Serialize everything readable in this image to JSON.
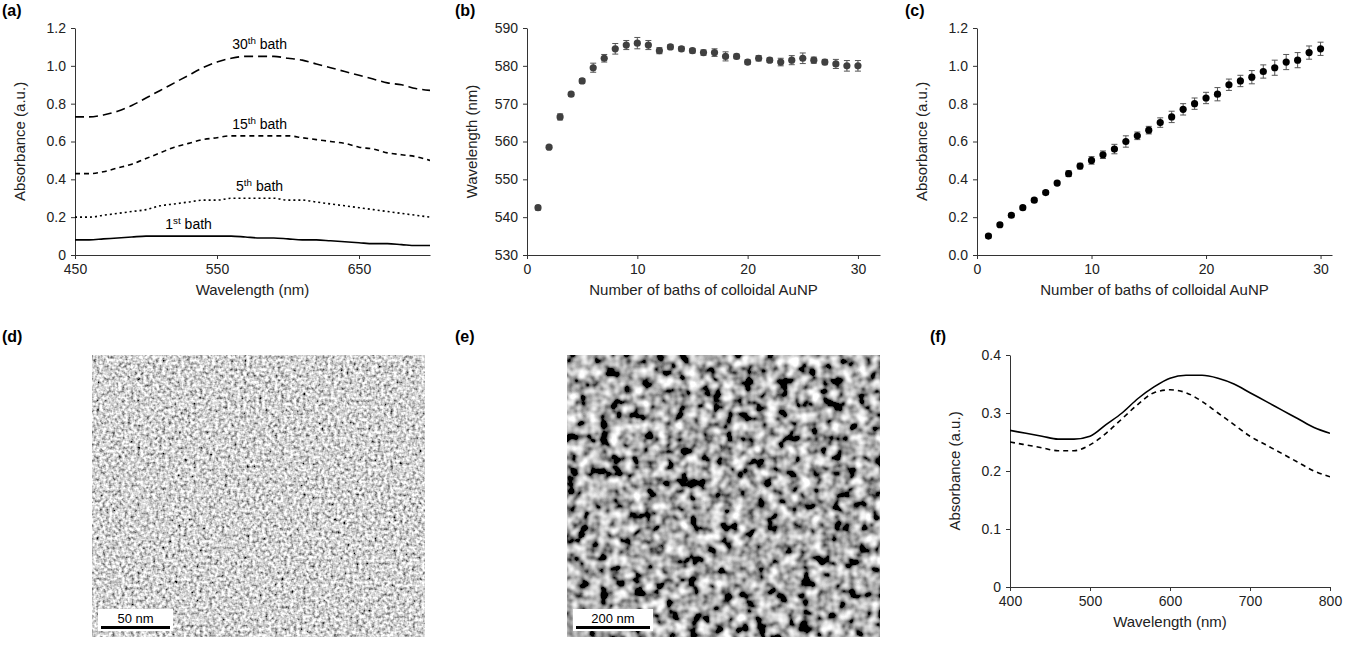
{
  "chart_data": [
    {
      "type": "line",
      "panel_label": "(a)",
      "x_label": "Wavelength (nm)",
      "y_label": "Absorbance (a.u.)",
      "x": [
        450,
        460,
        470,
        480,
        490,
        500,
        510,
        520,
        530,
        540,
        550,
        560,
        570,
        580,
        590,
        600,
        610,
        620,
        630,
        640,
        650,
        660,
        670,
        680,
        690,
        700
      ],
      "xlim": [
        450,
        700
      ],
      "xticks": [
        450,
        550,
        650
      ],
      "ylim": [
        0,
        1.2
      ],
      "yticks": [
        0,
        0.2,
        0.4,
        0.6,
        0.8,
        {
          "value": 1,
          "label": "1.0"
        },
        1.2
      ],
      "series": [
        {
          "name": "1st bath",
          "color": "#000000",
          "line_style": "solid",
          "values": [
            0.08,
            0.08,
            0.085,
            0.09,
            0.095,
            0.1,
            0.1,
            0.1,
            0.1,
            0.1,
            0.1,
            0.1,
            0.095,
            0.09,
            0.09,
            0.085,
            0.08,
            0.08,
            0.075,
            0.07,
            0.065,
            0.06,
            0.06,
            0.055,
            0.05,
            0.05
          ]
        },
        {
          "name": "5th bath",
          "color": "#000000",
          "line_style": "dotted",
          "values": [
            0.2,
            0.2,
            0.21,
            0.22,
            0.23,
            0.24,
            0.26,
            0.27,
            0.28,
            0.29,
            0.29,
            0.3,
            0.3,
            0.3,
            0.3,
            0.29,
            0.29,
            0.28,
            0.27,
            0.26,
            0.25,
            0.24,
            0.23,
            0.22,
            0.21,
            0.2
          ]
        },
        {
          "name": "15th bath",
          "color": "#000000",
          "line_style": "dashed",
          "values": [
            0.43,
            0.43,
            0.44,
            0.46,
            0.48,
            0.51,
            0.54,
            0.57,
            0.59,
            0.61,
            0.62,
            0.63,
            0.63,
            0.63,
            0.63,
            0.63,
            0.62,
            0.61,
            0.6,
            0.59,
            0.57,
            0.56,
            0.54,
            0.53,
            0.52,
            0.5
          ]
        },
        {
          "name": "30th bath",
          "color": "#000000",
          "line_style": "longdash",
          "values": [
            0.73,
            0.73,
            0.74,
            0.76,
            0.79,
            0.83,
            0.87,
            0.91,
            0.95,
            0.99,
            1.02,
            1.04,
            1.05,
            1.05,
            1.05,
            1.04,
            1.03,
            1.01,
            0.99,
            0.97,
            0.95,
            0.93,
            0.91,
            0.9,
            0.88,
            0.87
          ]
        }
      ]
    },
    {
      "type": "scatter",
      "panel_label": "(b)",
      "x_label": "Number of baths of colloidal AuNP",
      "y_label": "Wavelength (nm)",
      "color": "#404040",
      "marker": "circle",
      "x": [
        1,
        2,
        3,
        4,
        5,
        6,
        7,
        8,
        9,
        10,
        11,
        12,
        13,
        14,
        15,
        16,
        17,
        18,
        19,
        20,
        21,
        22,
        23,
        24,
        25,
        26,
        27,
        28,
        29,
        30
      ],
      "values": [
        542.5,
        558.5,
        566.5,
        572.5,
        576,
        579.5,
        582,
        584.5,
        585.5,
        586,
        585.5,
        584,
        585,
        584.5,
        584,
        583.5,
        583.5,
        582.5,
        582.5,
        581,
        582,
        581.5,
        581,
        581.5,
        582,
        581.5,
        581,
        580.5,
        580,
        580
      ],
      "errors": [
        0.6,
        0.4,
        0.8,
        0.5,
        0.6,
        1.2,
        1,
        1.4,
        1.2,
        1.5,
        1.2,
        0.8,
        0.6,
        0.6,
        0.6,
        0.7,
        1,
        1.2,
        0.6,
        0.6,
        0.7,
        0.6,
        1,
        1.2,
        1.4,
        0.8,
        0.7,
        1.2,
        1.4,
        1.4
      ],
      "xlim": [
        0,
        32
      ],
      "xticks": [
        0,
        10,
        20,
        30
      ],
      "ylim": [
        530,
        590
      ],
      "yticks": [
        530,
        540,
        550,
        560,
        570,
        580,
        590
      ]
    },
    {
      "type": "scatter",
      "panel_label": "(c)",
      "x_label": "Number of baths of colloidal AuNP",
      "y_label": "Absorbance (a.u.)",
      "color": "#000000",
      "marker": "circle",
      "x": [
        1,
        2,
        3,
        4,
        5,
        6,
        7,
        8,
        9,
        10,
        11,
        12,
        13,
        14,
        15,
        16,
        17,
        18,
        19,
        20,
        21,
        22,
        23,
        24,
        25,
        26,
        27,
        28,
        29,
        30
      ],
      "values": [
        0.1,
        0.16,
        0.21,
        0.25,
        0.29,
        0.33,
        0.38,
        0.43,
        0.47,
        0.5,
        0.53,
        0.56,
        0.6,
        0.63,
        0.66,
        0.7,
        0.73,
        0.77,
        0.8,
        0.83,
        0.85,
        0.9,
        0.92,
        0.94,
        0.97,
        0.99,
        1.02,
        1.03,
        1.07,
        1.09
      ],
      "errors": [
        0.01,
        0.01,
        0.01,
        0.01,
        0.01,
        0.01,
        0.01,
        0.015,
        0.015,
        0.02,
        0.02,
        0.025,
        0.03,
        0.02,
        0.02,
        0.025,
        0.03,
        0.03,
        0.03,
        0.03,
        0.035,
        0.03,
        0.03,
        0.035,
        0.035,
        0.04,
        0.04,
        0.04,
        0.035,
        0.035
      ],
      "xlim": [
        0,
        31
      ],
      "xticks": [
        0,
        10,
        20,
        30
      ],
      "ylim": [
        0,
        1.2
      ],
      "yticks": [
        {
          "value": 0,
          "label": "0.0"
        },
        0.2,
        0.4,
        0.6,
        0.8,
        {
          "value": 1,
          "label": "1.0"
        },
        1.2
      ]
    },
    {
      "type": "image",
      "panel_label": "(d)",
      "scale_bar": "50 nm"
    },
    {
      "type": "image",
      "panel_label": "(e)",
      "scale_bar": "200 nm"
    },
    {
      "type": "line",
      "panel_label": "(f)",
      "x_label": "Wavelength (nm)",
      "y_label": "Absorbance (a.u.)",
      "x": [
        400,
        420,
        440,
        460,
        480,
        500,
        520,
        540,
        560,
        580,
        600,
        620,
        640,
        660,
        680,
        700,
        720,
        740,
        760,
        780,
        800
      ],
      "xlim": [
        400,
        800
      ],
      "xticks": [
        400,
        500,
        600,
        700,
        800
      ],
      "ylim": [
        0,
        0.4
      ],
      "yticks": [
        0,
        0.1,
        0.2,
        0.3,
        0.4
      ],
      "series": [
        {
          "color": "#000000",
          "line_style": "solid",
          "values": [
            0.27,
            0.265,
            0.26,
            0.255,
            0.255,
            0.26,
            0.28,
            0.3,
            0.325,
            0.345,
            0.36,
            0.365,
            0.365,
            0.36,
            0.35,
            0.335,
            0.32,
            0.305,
            0.29,
            0.275,
            0.265
          ]
        },
        {
          "color": "#000000",
          "line_style": "dashed",
          "values": [
            0.25,
            0.245,
            0.24,
            0.235,
            0.235,
            0.245,
            0.265,
            0.29,
            0.315,
            0.335,
            0.34,
            0.335,
            0.32,
            0.3,
            0.28,
            0.26,
            0.245,
            0.23,
            0.215,
            0.2,
            0.19
          ]
        }
      ]
    }
  ]
}
